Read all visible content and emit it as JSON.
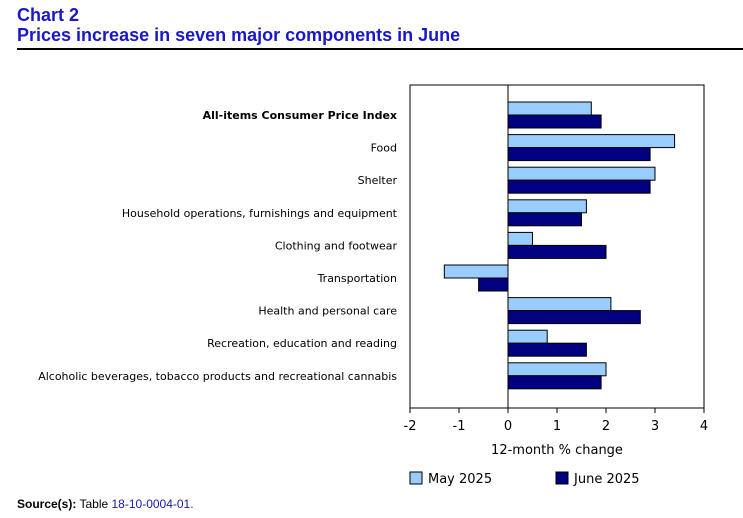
{
  "header": {
    "chart_label": "Chart 2",
    "title": "Prices increase in seven major components in June"
  },
  "source": {
    "label": "Source(s):",
    "text": "Table",
    "link_text": "18-10-0004-01."
  },
  "colors": {
    "may": "#99ccff",
    "june": "#000080",
    "stroke": "#000000"
  },
  "chart_data": {
    "type": "bar",
    "orientation": "horizontal",
    "categories": [
      "All-items Consumer Price Index",
      "Food",
      "Shelter",
      "Household operations, furnishings and equipment",
      "Clothing and footwear",
      "Transportation",
      "Health and personal care",
      "Recreation, education and reading",
      "Alcoholic beverages, tobacco products and recreational cannabis"
    ],
    "bold_categories": [
      "All-items Consumer Price Index"
    ],
    "series": [
      {
        "name": "May 2025",
        "values": [
          1.7,
          3.4,
          3.0,
          1.6,
          0.5,
          -1.3,
          2.1,
          0.8,
          2.0
        ]
      },
      {
        "name": "June 2025",
        "values": [
          1.9,
          2.9,
          2.9,
          1.5,
          2.0,
          -0.6,
          2.7,
          1.6,
          1.9
        ]
      }
    ],
    "xlabel": "12-month % change",
    "xlim": [
      -2,
      4
    ],
    "xticks": [
      -2,
      -1,
      0,
      1,
      2,
      3,
      4
    ],
    "grid": false,
    "legend_position": "bottom"
  }
}
